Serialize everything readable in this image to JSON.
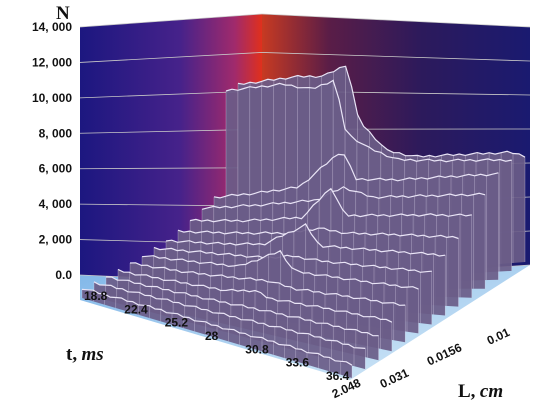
{
  "chart_data": {
    "type": "surface3d",
    "axes": {
      "z": {
        "label": "N",
        "ticks": [
          "0.0",
          "2, 000",
          "4, 000",
          "6, 000",
          "8, 000",
          "10, 000",
          "12, 000",
          "14, 000"
        ],
        "range": [
          0,
          14000
        ]
      },
      "t": {
        "label": "t,",
        "unit": "ms",
        "ticks": [
          "18.8",
          "22.4",
          "25.2",
          "28",
          "30.8",
          "33.6",
          "36.4"
        ]
      },
      "L": {
        "label": "L,",
        "unit": "cm",
        "ticks": [
          "2.048",
          "0.031",
          "0.0156",
          "0.01"
        ]
      }
    },
    "grid": true,
    "colors": {
      "wall_dark": "#1c1780",
      "wall_mid": "#5a2a86",
      "wall_hot": "#e0301c",
      "floor": "#a7d2f2",
      "surface_fill": "#6a5c88",
      "surface_line": "#e9e4f6"
    },
    "series_note": "",
    "rows": [
      {
        "t": "18.8",
        "profile": [
          [
            0,
            600
          ],
          [
            0.15,
            650
          ],
          [
            0.3,
            700
          ],
          [
            0.45,
            720
          ],
          [
            0.6,
            760
          ],
          [
            0.75,
            800
          ],
          [
            0.9,
            820
          ],
          [
            1,
            820
          ]
        ]
      },
      {
        "t": "20.2",
        "profile": [
          [
            0,
            900
          ],
          [
            0.15,
            950
          ],
          [
            0.3,
            1000
          ],
          [
            0.5,
            1050
          ],
          [
            0.7,
            1150
          ],
          [
            0.85,
            1200
          ],
          [
            1,
            1200
          ]
        ]
      },
      {
        "t": "21.6",
        "profile": [
          [
            0,
            1200
          ],
          [
            0.2,
            1250
          ],
          [
            0.4,
            1300
          ],
          [
            0.6,
            1400
          ],
          [
            0.8,
            1450
          ],
          [
            1,
            1500
          ]
        ]
      },
      {
        "t": "22.4",
        "profile": [
          [
            0,
            1500
          ],
          [
            0.2,
            1550
          ],
          [
            0.4,
            1650
          ],
          [
            0.5,
            2000
          ],
          [
            0.55,
            1700
          ],
          [
            0.75,
            1800
          ],
          [
            1,
            1850
          ]
        ]
      },
      {
        "t": "23.8",
        "profile": [
          [
            0,
            1900
          ],
          [
            0.2,
            1950
          ],
          [
            0.35,
            2100
          ],
          [
            0.5,
            2300
          ],
          [
            0.6,
            2100
          ],
          [
            0.8,
            2200
          ],
          [
            1,
            2250
          ]
        ]
      },
      {
        "t": "25.2",
        "profile": [
          [
            0,
            2300
          ],
          [
            0.2,
            2400
          ],
          [
            0.35,
            2500
          ],
          [
            0.5,
            3800
          ],
          [
            0.55,
            2700
          ],
          [
            0.8,
            2700
          ],
          [
            1,
            2750
          ]
        ]
      },
      {
        "t": "26.6",
        "profile": [
          [
            0,
            2700
          ],
          [
            0.2,
            2800
          ],
          [
            0.4,
            2900
          ],
          [
            0.5,
            3200
          ],
          [
            0.6,
            3100
          ],
          [
            0.8,
            3150
          ],
          [
            1,
            3200
          ]
        ]
      },
      {
        "t": "28",
        "profile": [
          [
            0,
            3100
          ],
          [
            0.2,
            3200
          ],
          [
            0.35,
            3400
          ],
          [
            0.5,
            4800
          ],
          [
            0.55,
            3600
          ],
          [
            0.8,
            3650
          ],
          [
            1,
            3700
          ]
        ]
      },
      {
        "t": "29.4",
        "profile": [
          [
            0,
            3600
          ],
          [
            0.2,
            3700
          ],
          [
            0.4,
            3900
          ],
          [
            0.5,
            4300
          ],
          [
            0.6,
            4100
          ],
          [
            0.8,
            4200
          ],
          [
            1,
            4250
          ]
        ]
      },
      {
        "t": "30.8",
        "profile": [
          [
            0,
            4200
          ],
          [
            0.2,
            4300
          ],
          [
            0.4,
            4600
          ],
          [
            0.5,
            6500
          ],
          [
            0.55,
            4800
          ],
          [
            0.7,
            4900
          ],
          [
            0.85,
            5000
          ],
          [
            1,
            5050
          ]
        ]
      },
      {
        "t": "32.2",
        "profile": [
          [
            0,
            4900
          ],
          [
            0.2,
            5100
          ],
          [
            0.4,
            5400
          ],
          [
            0.5,
            6200
          ],
          [
            0.6,
            5600
          ],
          [
            0.8,
            5700
          ],
          [
            1,
            5800
          ]
        ]
      },
      {
        "t": "33.6",
        "profile": [
          [
            0,
            5500
          ],
          [
            0.15,
            5700
          ],
          [
            0.3,
            6000
          ],
          [
            0.45,
            8200
          ],
          [
            0.5,
            6400
          ],
          [
            0.65,
            6300
          ],
          [
            0.8,
            6400
          ],
          [
            1,
            6500
          ]
        ]
      },
      {
        "t": "35.0",
        "profile": [
          [
            0,
            12000
          ],
          [
            0.1,
            12100
          ],
          [
            0.2,
            12200
          ],
          [
            0.3,
            11800
          ],
          [
            0.38,
            12300
          ],
          [
            0.42,
            9000
          ],
          [
            0.5,
            8000
          ],
          [
            0.6,
            7200
          ],
          [
            0.75,
            7000
          ],
          [
            0.9,
            6900
          ],
          [
            1,
            6800
          ]
        ]
      },
      {
        "t": "36.4",
        "profile": [
          [
            0,
            12300
          ],
          [
            0.1,
            12400
          ],
          [
            0.2,
            12500
          ],
          [
            0.3,
            12400
          ],
          [
            0.38,
            13000
          ],
          [
            0.42,
            9500
          ],
          [
            0.52,
            7500
          ],
          [
            0.62,
            7000
          ],
          [
            0.8,
            6900
          ],
          [
            0.95,
            6800
          ],
          [
            1,
            6500
          ]
        ]
      }
    ]
  }
}
